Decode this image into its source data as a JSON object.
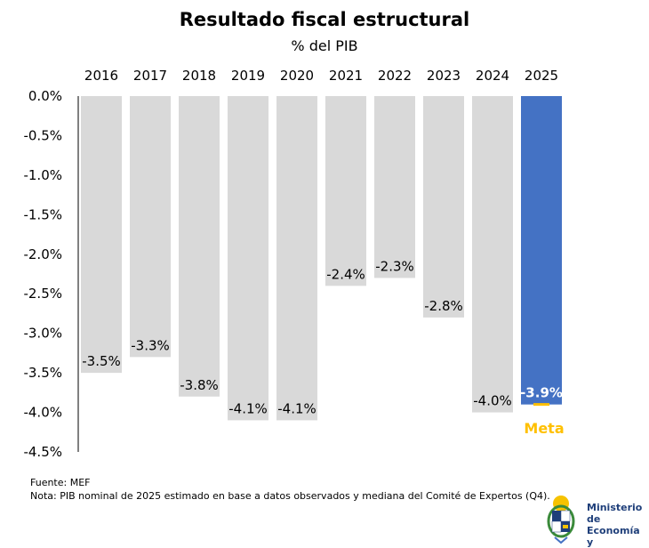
{
  "chart_data": {
    "type": "bar",
    "title": "Resultado fiscal estructural",
    "subtitle": "% del PIB",
    "categories": [
      "2016",
      "2017",
      "2018",
      "2019",
      "2020",
      "2021",
      "2022",
      "2023",
      "2024",
      "2025"
    ],
    "values": [
      -3.5,
      -3.3,
      -3.8,
      -4.1,
      -4.1,
      -2.4,
      -2.3,
      -2.8,
      -4.0,
      -3.9
    ],
    "data_labels": [
      "-3.5%",
      "-3.3%",
      "-3.8%",
      "-4.1%",
      "-4.1%",
      "-2.4%",
      "-2.3%",
      "-2.8%",
      "-4.0%",
      "-3.9%"
    ],
    "yticks": [
      0,
      -0.5,
      -1,
      -1.5,
      -2,
      -2.5,
      -3,
      -3.5,
      -4,
      -4.5
    ],
    "ytick_labels": [
      "0.0%",
      "-0.5%",
      "-1.0%",
      "-1.5%",
      "-2.0%",
      "-2.5%",
      "-3.0%",
      "-3.5%",
      "-4.0%",
      "-4.5%"
    ],
    "ylim": [
      -4.5,
      0
    ],
    "grid": false,
    "x_axis_position": "top",
    "colors": {
      "default": "#d9d9d9",
      "highlight": "#4472c4",
      "meta": "#ffc000"
    },
    "highlight_index": 9,
    "meta": {
      "label": "Meta",
      "value": -3.9,
      "index": 9
    }
  },
  "footer": {
    "source": "Fuente: MEF",
    "note": "Nota: PIB nominal de 2025 estimado en base a datos observados y mediana del Comité de Expertos (Q4)."
  },
  "logo": {
    "lines": [
      "Ministerio",
      "de Economía",
      "y Finanzas"
    ]
  }
}
